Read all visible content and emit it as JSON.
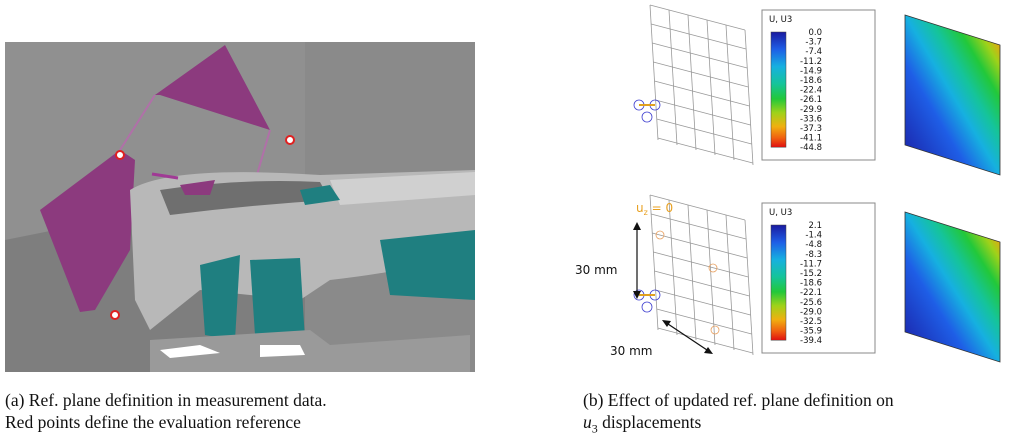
{
  "panel_a": {
    "caption": [
      "(a) Ref. plane definition in measurement data.",
      "Red points define the evaluation reference"
    ]
  },
  "panel_b": {
    "legends": [
      {
        "title": "U, U3",
        "labels": [
          "0.0",
          "-3.7",
          "-7.4",
          "-11.2",
          "-14.9",
          "-18.6",
          "-22.4",
          "-26.1",
          "-29.9",
          "-33.6",
          "-37.3",
          "-41.1",
          "-44.8"
        ]
      },
      {
        "title": "U, U3",
        "labels": [
          "2.1",
          "-1.4",
          "-4.8",
          "-8.3",
          "-11.7",
          "-15.2",
          "-18.6",
          "-22.1",
          "-25.6",
          "-29.0",
          "-32.5",
          "-35.9",
          "-39.4"
        ]
      }
    ],
    "constraint": {
      "symbol": "u",
      "subscript": "z",
      "text": " = 0"
    },
    "dimension_vertical": "30 mm",
    "dimension_horizontal": "30 mm",
    "caption": {
      "line1": "(b) Effect of updated ref.  plane definition on",
      "line2": {
        "symbol": "u",
        "subscript": "3",
        "text": " displacements"
      }
    }
  }
}
